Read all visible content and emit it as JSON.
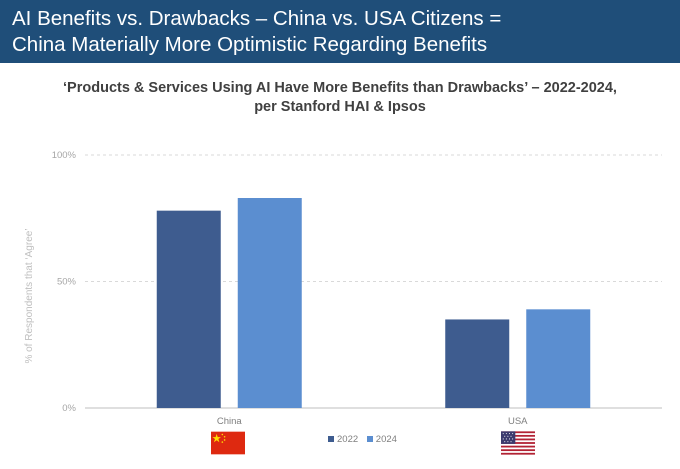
{
  "header": {
    "title_line1": "AI Benefits vs. Drawbacks – China vs. USA Citizens =",
    "title_line2": "China Materially More Optimistic Regarding Benefits"
  },
  "chart_data": {
    "type": "bar",
    "title_line1": "‘Products & Services Using AI Have More Benefits than Drawbacks’ – 2022-2024,",
    "title_line2": "per Stanford HAI & Ipsos",
    "categories": [
      "China",
      "USA"
    ],
    "series": [
      {
        "name": "2022",
        "values": [
          78,
          35
        ],
        "color": "#3e5c8f"
      },
      {
        "name": "2024",
        "values": [
          83,
          39
        ],
        "color": "#5b8ed0"
      }
    ],
    "ylabel": "% of Respondents that ‘Agree’",
    "yticks": [
      "0%",
      "50%",
      "100%"
    ],
    "ylim": [
      0,
      100
    ],
    "grid": true,
    "legend_position": "bottom"
  },
  "icons": {
    "china": "china-flag-icon",
    "usa": "usa-flag-icon"
  },
  "colors": {
    "banner": "#1f4e79",
    "gridline": "#d9d9d9"
  }
}
